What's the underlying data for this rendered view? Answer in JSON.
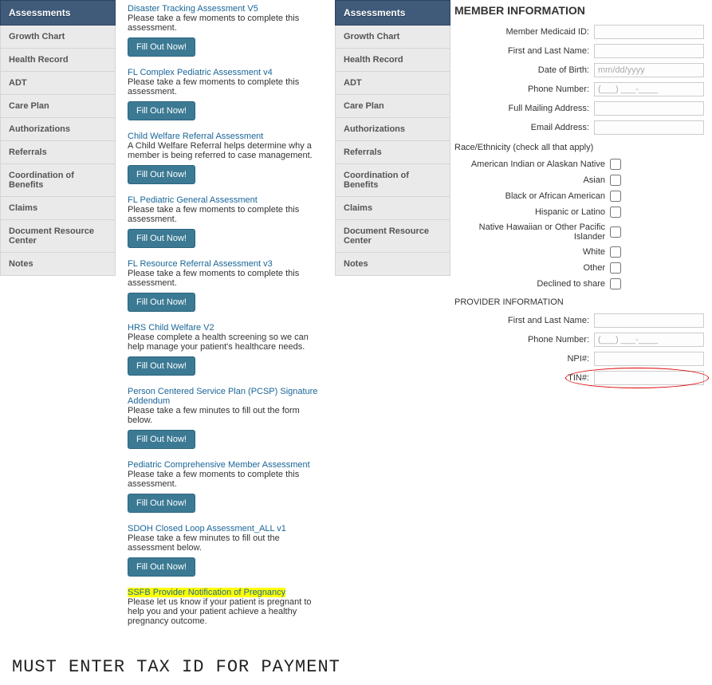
{
  "sidebar": {
    "header": "Assessments",
    "items": [
      "Growth Chart",
      "Health Record",
      "ADT",
      "Care Plan",
      "Authorizations",
      "Referrals",
      "Coordination of Benefits",
      "Claims",
      "Document Resource Center",
      "Notes"
    ]
  },
  "fillButtonLabel": "Fill Out Now!",
  "assessments": [
    {
      "title": "Disaster Tracking Assessment V5",
      "desc": "Please take a few moments to complete this assessment.",
      "btn": true
    },
    {
      "title": "FL Complex Pediatric Assessment v4",
      "desc": "Please take a few moments to complete this assessment.",
      "btn": true
    },
    {
      "title": "Child Welfare Referral Assessment",
      "desc": "A Child Welfare Referral helps determine why a member is being referred to case management.",
      "btn": true
    },
    {
      "title": "FL Pediatric General Assessment",
      "desc": "Please take a few moments to complete this assessment.",
      "btn": true
    },
    {
      "title": "FL Resource Referral Assessment v3",
      "desc": "Please take a few moments to complete this assessment.",
      "btn": true
    },
    {
      "title": "HRS Child Welfare V2",
      "desc": "Please complete a health screening so we can help manage your patient's healthcare needs.",
      "btn": true
    },
    {
      "title": "Person Centered Service Plan (PCSP) Signature Addendum",
      "desc": "Please take a few minutes to fill out the form below.",
      "btn": true
    },
    {
      "title": "Pediatric Comprehensive Member Assessment",
      "desc": "Please take a few moments to complete this assessment.",
      "btn": true
    },
    {
      "title": "SDOH Closed Loop Assessment_ALL v1",
      "desc": "Please take a few minutes to fill out the assessment below.",
      "btn": true
    },
    {
      "title": "SSFB Provider Notification of Pregnancy",
      "desc": "Please let us know if your patient is pregnant to help you and your patient achieve a healthy pregnancy outcome.",
      "btn": false,
      "highlight": true
    }
  ],
  "memberInfo": {
    "title": "MEMBER INFORMATION",
    "fields": [
      {
        "label": "Member Medicaid ID:",
        "placeholder": ""
      },
      {
        "label": "First and Last Name:",
        "placeholder": ""
      },
      {
        "label": "Date of Birth:",
        "placeholder": "mm/dd/yyyy"
      },
      {
        "label": "Phone Number:",
        "placeholder": "(___) ___-____"
      },
      {
        "label": "Full Mailing Address:",
        "placeholder": ""
      },
      {
        "label": "Email Address:",
        "placeholder": ""
      }
    ],
    "raceHeader": "Race/Ethnicity (check all that apply)",
    "raceOptions": [
      "American Indian or Alaskan Native",
      "Asian",
      "Black or African American",
      "Hispanic or Latino",
      "Native Hawaiian or Other Pacific Islander",
      "White",
      "Other",
      "Declined to share"
    ],
    "providerHeader": "PROVIDER INFORMATION",
    "providerFields": [
      {
        "label": "First and Last Name:",
        "placeholder": ""
      },
      {
        "label": "Phone Number:",
        "placeholder": "(___) ___-____"
      },
      {
        "label": "NPI#:",
        "placeholder": ""
      },
      {
        "label": "TIN#:",
        "placeholder": "",
        "circled": true
      }
    ]
  },
  "bottomText": "MUST ENTER TAX ID FOR PAYMENT"
}
